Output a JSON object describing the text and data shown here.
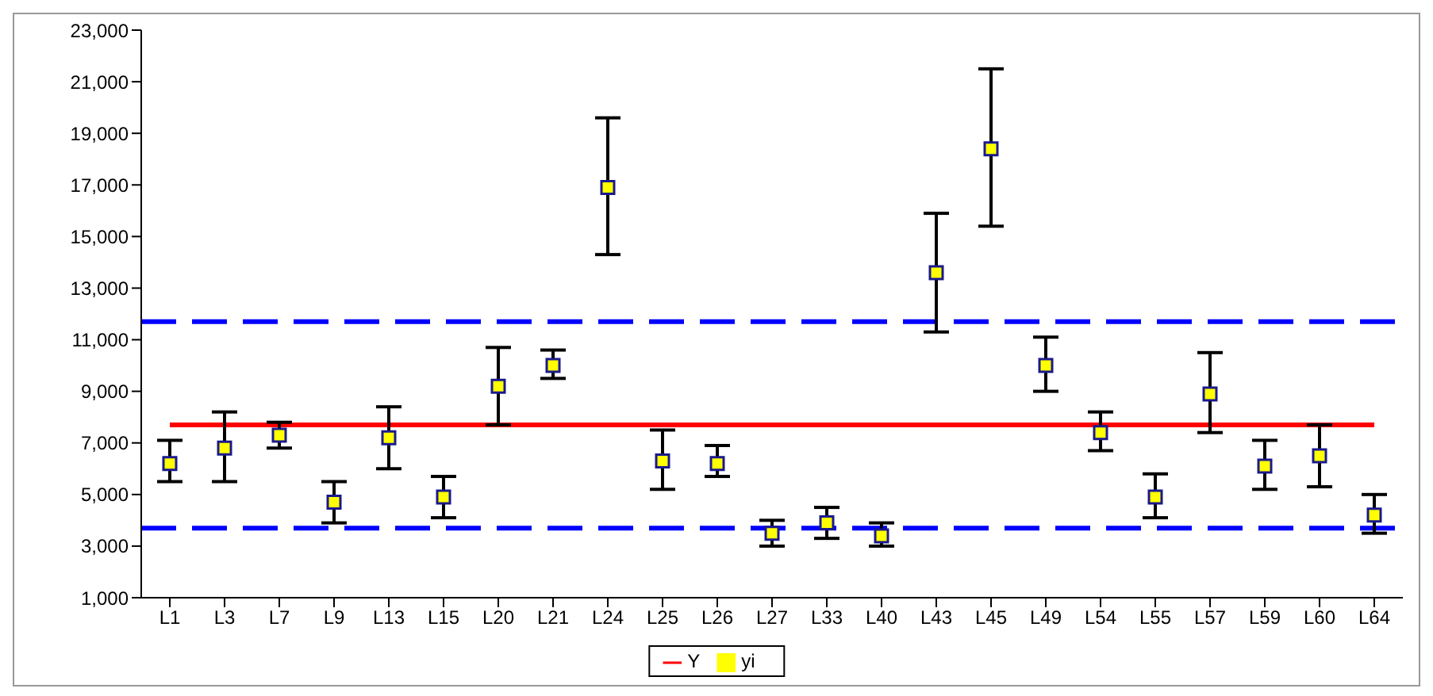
{
  "chart_data": {
    "type": "scatter",
    "categories": [
      "L1",
      "L3",
      "L7",
      "L9",
      "L13",
      "L15",
      "L20",
      "L21",
      "L24",
      "L25",
      "L26",
      "L27",
      "L33",
      "L40",
      "L43",
      "L45",
      "L49",
      "L54",
      "L55",
      "L57",
      "L59",
      "L60",
      "L64"
    ],
    "series": [
      {
        "name": "Y",
        "type": "line",
        "color": "#ff0000",
        "line_style": "solid",
        "marker": "none",
        "values": [
          7700,
          7700,
          7700,
          7700,
          7700,
          7700,
          7700,
          7700,
          7700,
          7700,
          7700,
          7700,
          7700,
          7700,
          7700,
          7700,
          7700,
          7700,
          7700,
          7700,
          7700,
          7700,
          7700
        ]
      },
      {
        "name": "yi",
        "color": "#ffff00",
        "marker": "square",
        "values": [
          6200,
          6800,
          7300,
          4700,
          7200,
          4900,
          9200,
          10000,
          16900,
          6300,
          6200,
          3500,
          3900,
          3400,
          13600,
          18400,
          10000,
          7400,
          4900,
          8900,
          6100,
          6500,
          4200
        ],
        "errors": [
          [
            5500,
            7100
          ],
          [
            5500,
            8200
          ],
          [
            6800,
            7800
          ],
          [
            3900,
            5500
          ],
          [
            6000,
            8400
          ],
          [
            4100,
            5700
          ],
          [
            7700,
            10700
          ],
          [
            9500,
            10600
          ],
          [
            14300,
            19600
          ],
          [
            5200,
            7500
          ],
          [
            5700,
            6900
          ],
          [
            3000,
            4000
          ],
          [
            3300,
            4500
          ],
          [
            3000,
            3900
          ],
          [
            11300,
            15900
          ],
          [
            15400,
            21500
          ],
          [
            9000,
            11100
          ],
          [
            6700,
            8200
          ],
          [
            4100,
            5800
          ],
          [
            7400,
            10500
          ],
          [
            5200,
            7100
          ],
          [
            5300,
            7700
          ],
          [
            3500,
            5000
          ]
        ]
      }
    ],
    "ylim": [
      1000,
      23000
    ],
    "yticks": [
      {
        "value": 1000,
        "label": "1,000"
      },
      {
        "value": 3000,
        "label": "3,000"
      },
      {
        "value": 5000,
        "label": "5,000"
      },
      {
        "value": 7000,
        "label": "7,000"
      },
      {
        "value": 9000,
        "label": "9,000"
      },
      {
        "value": 11000,
        "label": "11,000"
      },
      {
        "value": 13000,
        "label": "13,000"
      },
      {
        "value": 15000,
        "label": "15,000"
      },
      {
        "value": 17000,
        "label": "17,000"
      },
      {
        "value": 19000,
        "label": "19,000"
      },
      {
        "value": 21000,
        "label": "21,000"
      },
      {
        "value": 23000,
        "label": "23,000"
      }
    ],
    "ref_lines": [
      {
        "axis": "y",
        "value": 11700,
        "color": "#0000ff",
        "line_style": "dashed"
      },
      {
        "axis": "y",
        "value": 3700,
        "color": "#0000ff",
        "line_style": "dashed"
      }
    ],
    "grid": false,
    "legend": "bottom"
  }
}
